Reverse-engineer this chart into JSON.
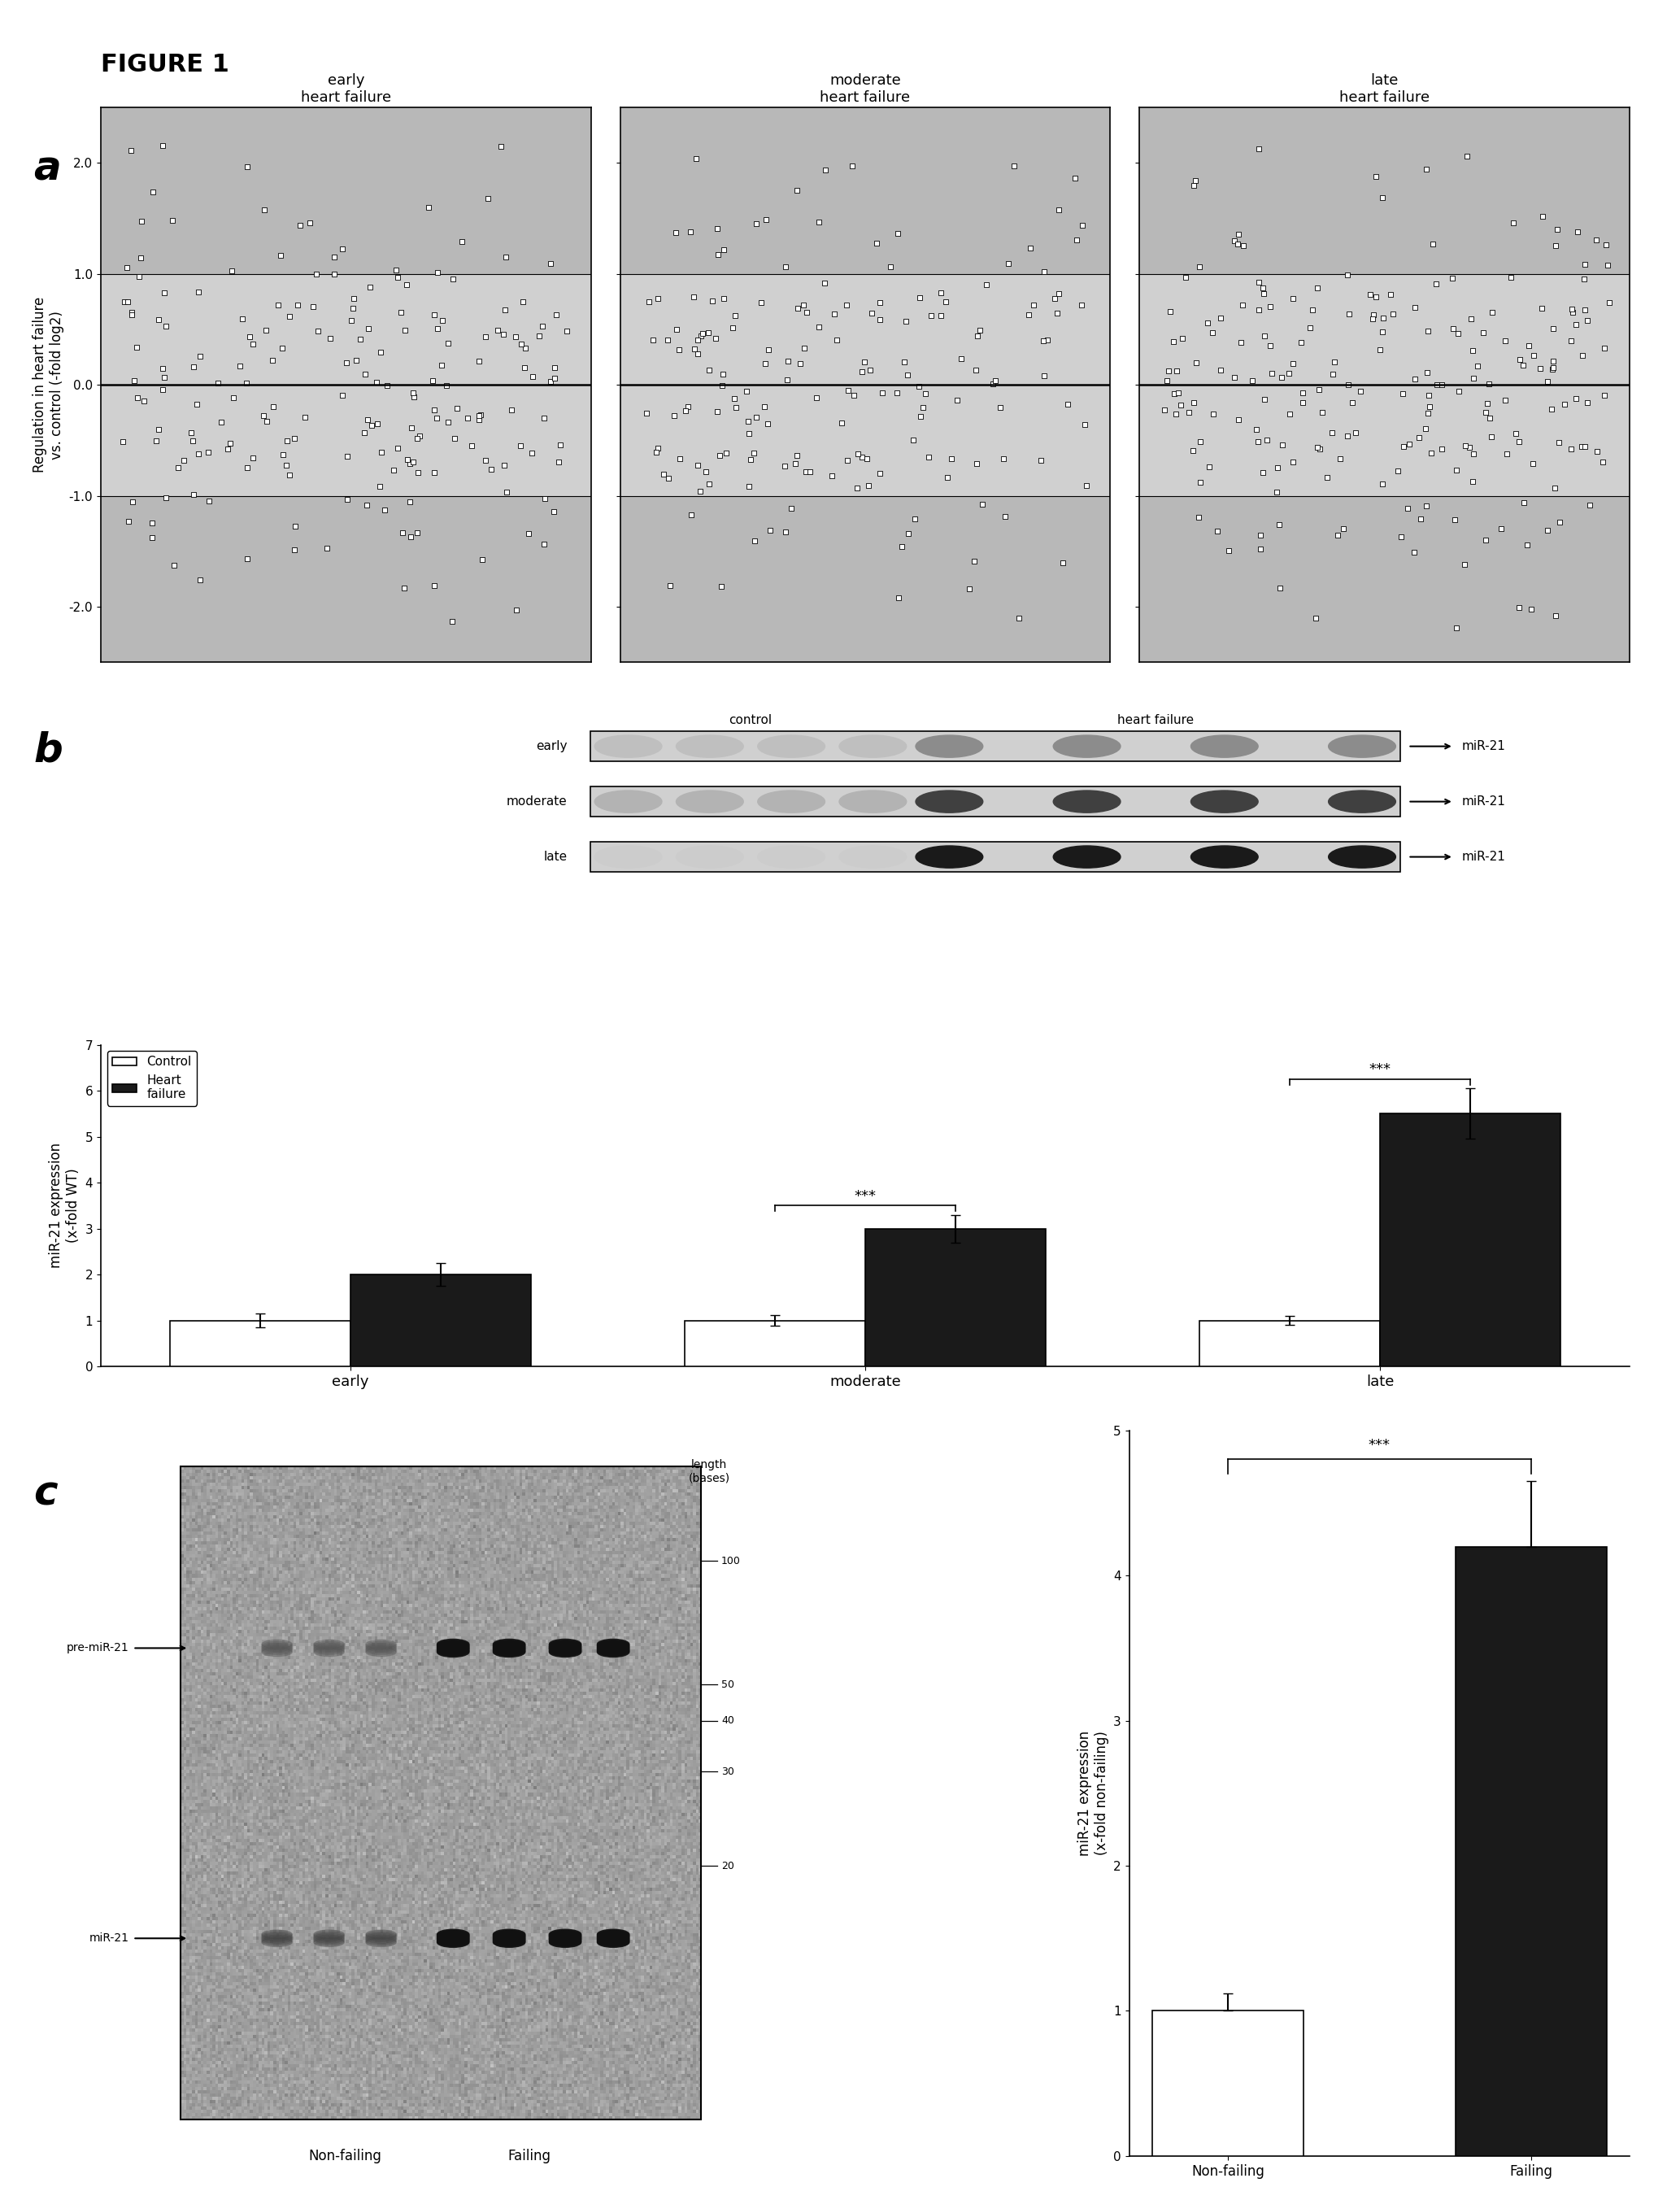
{
  "figure_title": "FIGURE 1",
  "panel_a": {
    "subplot_titles": [
      "early\nheart failure",
      "moderate\nheart failure",
      "late\nheart failure"
    ],
    "ylabel": "Regulation in heart failure\nvs. control (-fold log2)",
    "ylim": [
      -2.5,
      2.5
    ],
    "yticks": [
      -2.0,
      -1.0,
      0.0,
      1.0,
      2.0
    ],
    "ytick_labels": [
      "-2.0",
      "-1.0",
      "0.0",
      "1.0",
      "2.0"
    ],
    "band_lo": -1.0,
    "band_hi": 1.0,
    "outer_color": "#b8b8b8",
    "inner_color": "#d0d0d0",
    "scatter_color": "white",
    "scatter_edge": "black",
    "n_points_early": 200,
    "n_points_moderate": 175,
    "n_points_late": 220
  },
  "panel_b": {
    "blot_rows": [
      "early",
      "moderate",
      "late"
    ],
    "blot_n_ctrl": 4,
    "blot_n_hf": 4,
    "bar_categories": [
      "early",
      "moderate",
      "late"
    ],
    "control_values": [
      1.0,
      1.0,
      1.0
    ],
    "control_errors": [
      0.15,
      0.12,
      0.1
    ],
    "hf_values": [
      2.0,
      3.0,
      5.5
    ],
    "hf_errors": [
      0.25,
      0.3,
      0.55
    ],
    "ylabel": "miR-21 expression\n(x-fold WT)",
    "ylim": [
      0,
      7
    ],
    "yticks": [
      0,
      1,
      2,
      3,
      4,
      5,
      6,
      7
    ],
    "bar_width": 0.35,
    "control_color": "white",
    "hf_color": "#1a1a1a",
    "bar_edge": "black"
  },
  "panel_c": {
    "blot_label_pre": "pre-miR-21",
    "blot_label_mir": "miR-21",
    "ladder_labels": [
      "100",
      "50",
      "40",
      "30",
      "20"
    ],
    "bar_categories": [
      "Non-failing",
      "Failing"
    ],
    "nf_value": 1.0,
    "nf_error": 0.12,
    "f_value": 4.2,
    "f_error": 0.45,
    "ylabel": "miR-21 expression\n(x-fold non-failing)",
    "ylim": [
      0,
      5
    ],
    "yticks": [
      0,
      1,
      2,
      3,
      4,
      5
    ],
    "nf_color": "white",
    "f_color": "#1a1a1a",
    "bar_edge": "black"
  }
}
